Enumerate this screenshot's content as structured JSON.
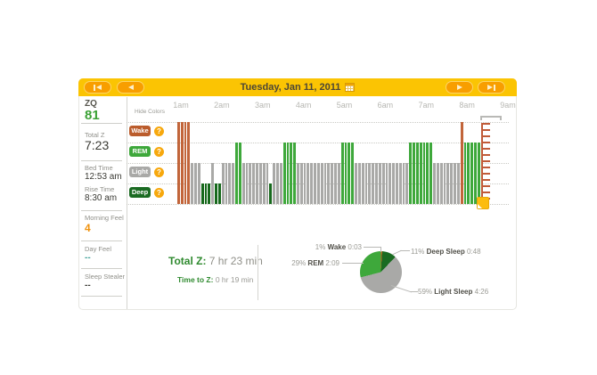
{
  "header": {
    "date": "Tuesday, Jan 11, 2011",
    "nav": [
      {
        "name": "first-day-button",
        "icon": "skip-back-icon"
      },
      {
        "name": "previous-day-button",
        "icon": "arrow-left-icon"
      },
      {
        "name": "next-day-button",
        "icon": "arrow-right-icon"
      },
      {
        "name": "last-day-button",
        "icon": "skip-forward-icon"
      }
    ],
    "calendar_icon": "calendar-icon",
    "bar_color": "#fbc403",
    "button_color": "#f89e00"
  },
  "sidebar": {
    "zq_label": "ZQ",
    "zq_value": "81",
    "total_z_label": "Total Z",
    "total_z_value": "7:23",
    "bed_time_label": "Bed Time",
    "bed_time_value": "12:53 am",
    "rise_time_label": "Rise Time",
    "rise_time_value": "8:30 am",
    "morning_feel_label": "Morning Feel",
    "morning_feel_value": "4",
    "day_feel_label": "Day Feel",
    "day_feel_value": "--",
    "sleep_stealer_label": "Sleep Stealer",
    "sleep_stealer_value": "--",
    "zq_color": "#3ba135",
    "morning_feel_color": "#f0920e",
    "day_feel_color": "#46a49c"
  },
  "legend": {
    "hide_colors": "Hide Colors",
    "items": [
      {
        "label": "Wake",
        "color": "#bb5c2c"
      },
      {
        "label": "REM",
        "color": "#3ea83b"
      },
      {
        "label": "Light",
        "color": "#a9a9a7"
      },
      {
        "label": "Deep",
        "color": "#1b6b22"
      }
    ],
    "help_icon": "question-mark-icon",
    "help_color": "#f7a80d"
  },
  "chart_data": [
    {
      "type": "bar",
      "title": "Sleep phases through the night (5-minute intervals)",
      "hours": [
        "1am",
        "2am",
        "3am",
        "4am",
        "5am",
        "6am",
        "7am",
        "8am",
        "9am"
      ],
      "start_time": "12:55 am",
      "segment_minutes": 5,
      "levels": [
        {
          "key": "W",
          "label": "Wake"
        },
        {
          "key": "R",
          "label": "REM"
        },
        {
          "key": "L",
          "label": "Light"
        },
        {
          "key": "D",
          "label": "Deep"
        }
      ],
      "segments": [
        [
          "W",
          4
        ],
        [
          "L",
          3
        ],
        [
          "D",
          3
        ],
        [
          "L",
          1
        ],
        [
          "D",
          2
        ],
        [
          "L",
          4
        ],
        [
          "R",
          2
        ],
        [
          "L",
          8
        ],
        [
          "D",
          1
        ],
        [
          "L",
          3
        ],
        [
          "R",
          4
        ],
        [
          "L",
          13
        ],
        [
          "R",
          4
        ],
        [
          "L",
          16
        ],
        [
          "R",
          7
        ],
        [
          "L",
          8
        ],
        [
          "W",
          1
        ],
        [
          "R",
          5
        ]
      ],
      "colors": {
        "W": "#c2653a",
        "R": "#3ea83b",
        "L": "#a9a9a7",
        "D": "#17691c"
      },
      "rise_marker_time": "8:30 am",
      "grid": "dotted"
    },
    {
      "type": "pie",
      "title": "Sleep composition",
      "slices": [
        {
          "key": "wake",
          "name": "Wake",
          "pct": "1%",
          "value": 1,
          "time": "0:03",
          "color": "#b5651d"
        },
        {
          "key": "deep",
          "name": "Deep Sleep",
          "pct": "11%",
          "value": 11,
          "time": "0:48",
          "color": "#1a6b21"
        },
        {
          "key": "light",
          "name": "Light Sleep",
          "pct": "59%",
          "value": 59,
          "time": "4:26",
          "color": "#a9a9a7"
        },
        {
          "key": "rem",
          "name": "REM",
          "pct": "29%",
          "value": 29,
          "time": "2:09",
          "color": "#3ea83b"
        }
      ],
      "order": "clockwise-from-top"
    }
  ],
  "summary": {
    "total_z_label": "Total Z:",
    "total_z_value": "7 hr 23 min",
    "time_to_z_label": "Time to Z:",
    "time_to_z_value": "0 hr 19 min"
  }
}
